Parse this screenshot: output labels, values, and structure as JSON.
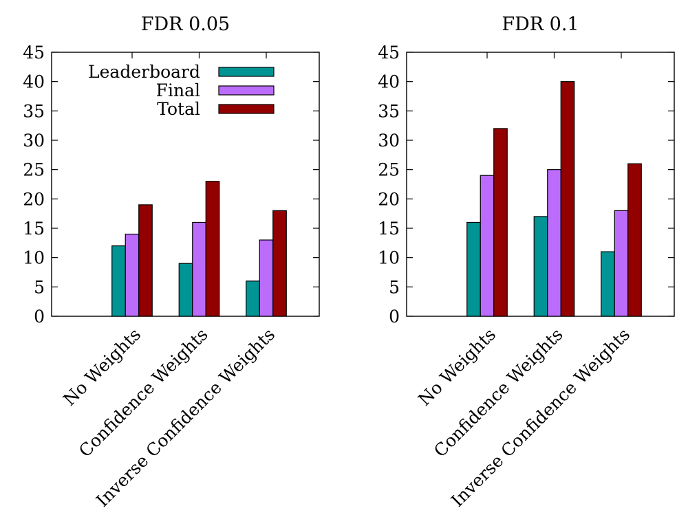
{
  "figure": {
    "series_colors": {
      "Leaderboard": "#009494",
      "Final": "#bb6cfb",
      "Total": "#930000"
    }
  },
  "chart_data": [
    {
      "type": "bar",
      "title": "FDR 0.05",
      "categories": [
        "No Weights",
        "Confidence Weights",
        "Inverse Confidence Weights"
      ],
      "series": [
        {
          "name": "Leaderboard",
          "values": [
            12,
            9,
            6
          ]
        },
        {
          "name": "Final",
          "values": [
            14,
            16,
            13
          ]
        },
        {
          "name": "Total",
          "values": [
            19,
            23,
            18
          ]
        }
      ],
      "ylim": [
        0,
        45
      ],
      "yticks": [
        0,
        5,
        10,
        15,
        20,
        25,
        30,
        35,
        40,
        45
      ],
      "xlabel": "",
      "ylabel": "",
      "legend": "top-left",
      "grid": false
    },
    {
      "type": "bar",
      "title": "FDR 0.1",
      "categories": [
        "No Weights",
        "Confidence Weights",
        "Inverse Confidence Weights"
      ],
      "series": [
        {
          "name": "Leaderboard",
          "values": [
            16,
            17,
            11
          ]
        },
        {
          "name": "Final",
          "values": [
            24,
            25,
            18
          ]
        },
        {
          "name": "Total",
          "values": [
            32,
            40,
            26
          ]
        }
      ],
      "ylim": [
        0,
        45
      ],
      "yticks": [
        0,
        5,
        10,
        15,
        20,
        25,
        30,
        35,
        40,
        45
      ],
      "xlabel": "",
      "ylabel": "",
      "legend": "none",
      "grid": false
    }
  ]
}
